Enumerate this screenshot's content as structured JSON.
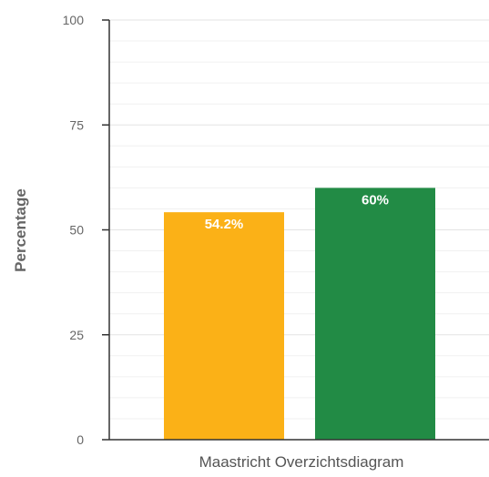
{
  "chart_data": {
    "type": "bar",
    "categories": [
      "Maastricht Overzichtsdiagram"
    ],
    "series": [
      {
        "values": [
          54.2
        ],
        "data_label": "54.2%",
        "color": "#FBB117"
      },
      {
        "values": [
          60
        ],
        "data_label": "60%",
        "color": "#228B45"
      }
    ],
    "ylabel": "Percentage",
    "xlabel": "",
    "ylim": [
      0,
      100
    ],
    "yticks": [
      0,
      25,
      50,
      75,
      100
    ],
    "ytick_labels": [
      "0",
      "25",
      "50",
      "75",
      "100"
    ],
    "grid": true,
    "minor_grid": true
  }
}
